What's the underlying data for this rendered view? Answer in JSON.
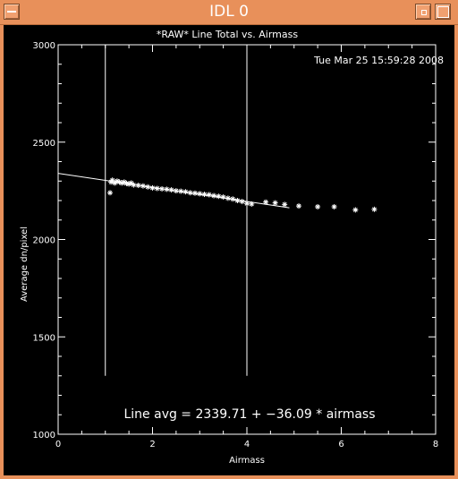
{
  "window": {
    "title": "IDL 0"
  },
  "chart_data": {
    "type": "scatter",
    "title": "*RAW* Line Total vs. Airmass",
    "timestamp": "Tue Mar 25 15:59:28 2008",
    "xlabel": "Airmass",
    "ylabel": "Average dn/pixel",
    "xlim": [
      0,
      8
    ],
    "ylim": [
      1000,
      3000
    ],
    "xticks": [
      0,
      2,
      4,
      6,
      8
    ],
    "yticks": [
      1000,
      1500,
      2000,
      2500,
      3000
    ],
    "fit_label": "Line avg = 2339.71 + −36.09 * airmass",
    "fit": {
      "intercept": 2339.71,
      "slope": -36.09
    },
    "vertical_lines": [
      1.0,
      4.0
    ],
    "series": [
      {
        "values": [
          [
            1.1,
            2240
          ],
          [
            1.12,
            2295
          ],
          [
            1.15,
            2305
          ],
          [
            1.2,
            2290
          ],
          [
            1.25,
            2300
          ],
          [
            1.3,
            2295
          ],
          [
            1.35,
            2290
          ],
          [
            1.4,
            2295
          ],
          [
            1.45,
            2288
          ],
          [
            1.5,
            2285
          ],
          [
            1.55,
            2290
          ],
          [
            1.6,
            2280
          ],
          [
            1.7,
            2278
          ],
          [
            1.8,
            2275
          ],
          [
            1.9,
            2270
          ],
          [
            2.0,
            2265
          ],
          [
            2.1,
            2262
          ],
          [
            2.2,
            2260
          ],
          [
            2.3,
            2258
          ],
          [
            2.4,
            2255
          ],
          [
            2.5,
            2250
          ],
          [
            2.6,
            2248
          ],
          [
            2.7,
            2245
          ],
          [
            2.8,
            2240
          ],
          [
            2.9,
            2238
          ],
          [
            3.0,
            2235
          ],
          [
            3.1,
            2232
          ],
          [
            3.2,
            2230
          ],
          [
            3.3,
            2225
          ],
          [
            3.4,
            2222
          ],
          [
            3.5,
            2218
          ],
          [
            3.6,
            2212
          ],
          [
            3.7,
            2208
          ],
          [
            3.8,
            2200
          ],
          [
            3.9,
            2195
          ],
          [
            4.0,
            2185
          ],
          [
            4.1,
            2182
          ],
          [
            4.4,
            2192
          ],
          [
            4.6,
            2188
          ],
          [
            4.8,
            2180
          ],
          [
            5.1,
            2172
          ],
          [
            5.5,
            2168
          ],
          [
            5.85,
            2168
          ],
          [
            6.3,
            2152
          ],
          [
            6.7,
            2155
          ]
        ]
      }
    ]
  }
}
